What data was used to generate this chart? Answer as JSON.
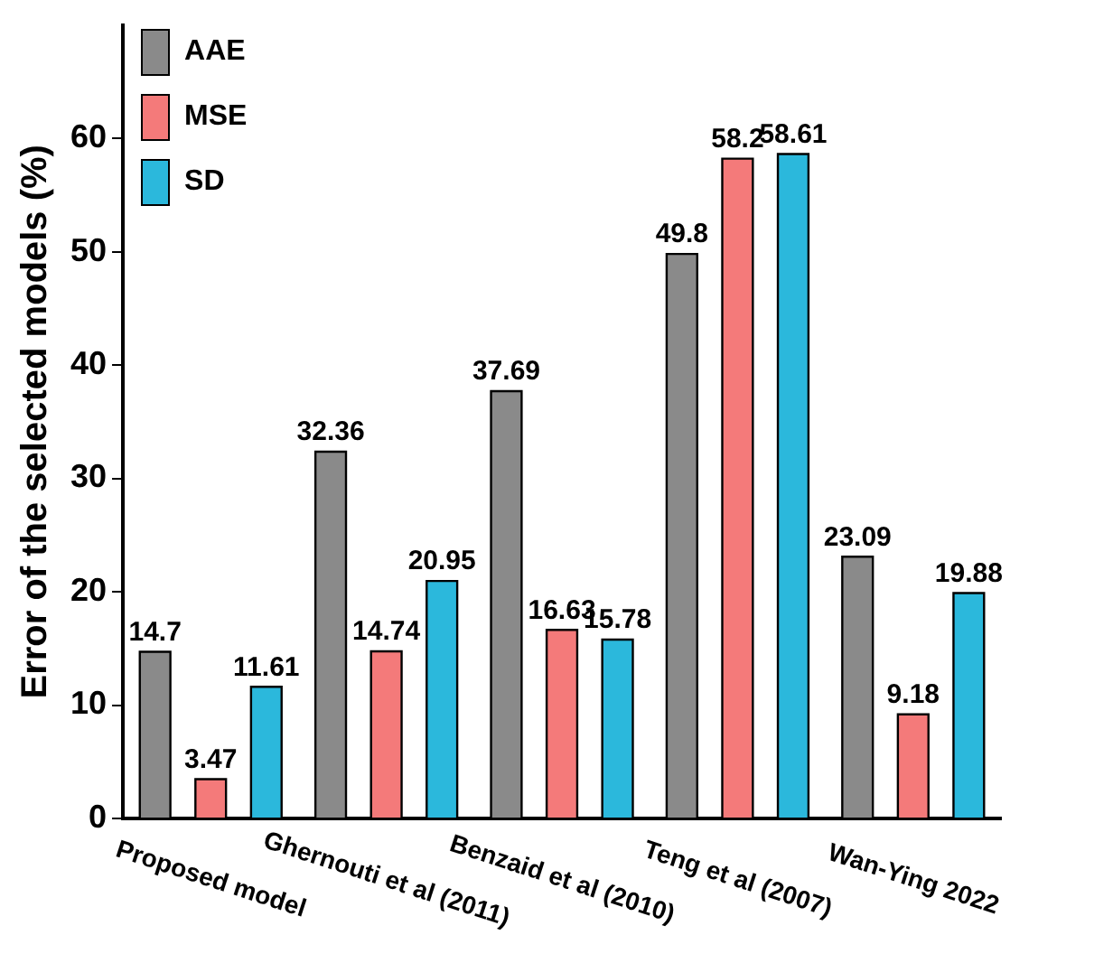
{
  "chart_data": {
    "type": "bar",
    "ylabel": "Error of the selected models (%)",
    "categories": [
      "Proposed model",
      "Ghernouti et al (2011)",
      "Benzaid et al (2010)",
      "Teng et al (2007)",
      "Wan-Ying 2022"
    ],
    "series": [
      {
        "name": "AAE",
        "color": "#8a8a8a",
        "values": [
          14.7,
          32.36,
          37.69,
          49.8,
          23.09
        ]
      },
      {
        "name": "MSE",
        "color": "#f47a7a",
        "values": [
          3.47,
          14.74,
          16.63,
          58.2,
          9.18
        ]
      },
      {
        "name": "SD",
        "color": "#2bb8dc",
        "values": [
          11.61,
          20.95,
          15.78,
          58.61,
          19.88
        ]
      }
    ],
    "ylim": [
      0,
      70
    ],
    "yticks": [
      0,
      10,
      20,
      30,
      40,
      50,
      60
    ],
    "legend": "top left",
    "data_labels": true,
    "grid": false
  }
}
